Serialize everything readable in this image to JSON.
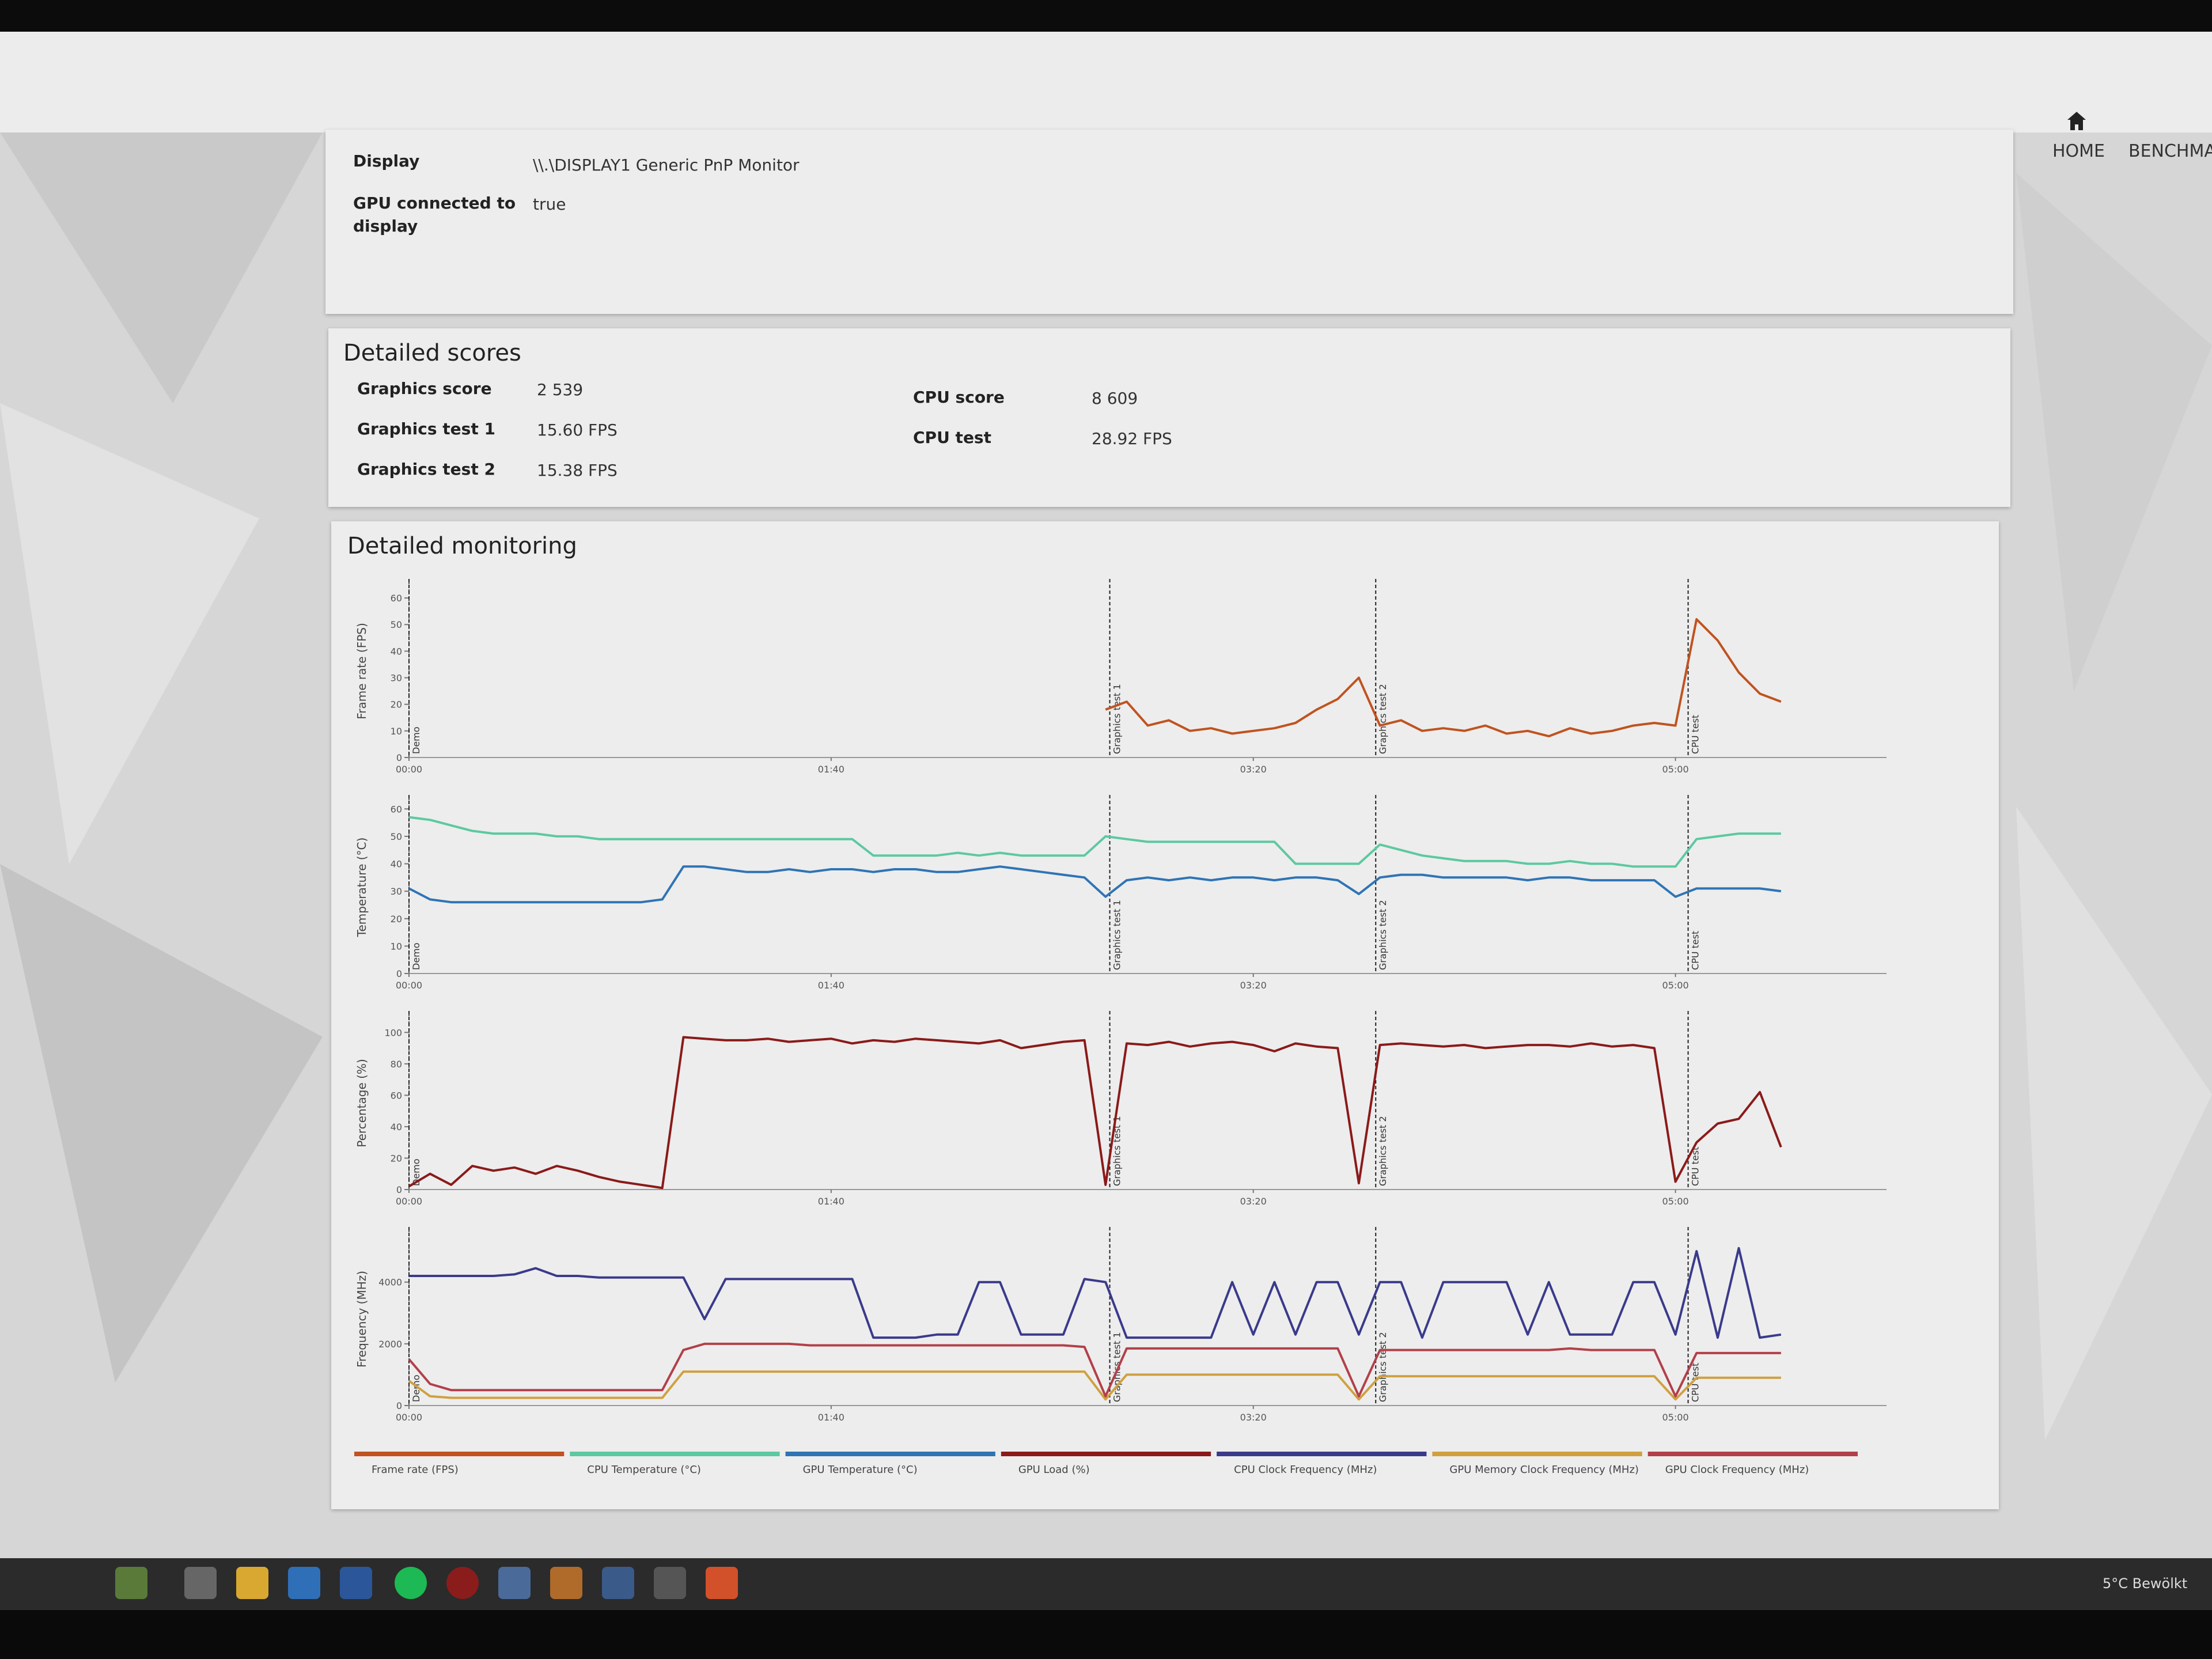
{
  "nav": [
    "HOME",
    "BENCHMARKS"
  ],
  "display_info": {
    "rows": [
      [
        "Display",
        "\\\\.\\DISPLAY1 Generic PnP Monitor"
      ],
      [
        "GPU connected to display",
        "true"
      ]
    ]
  },
  "detailed_scores": {
    "title": "Detailed scores",
    "left": [
      [
        "Graphics score",
        "2 539"
      ],
      [
        "Graphics test 1",
        "15.60 FPS"
      ],
      [
        "Graphics test 2",
        "15.38 FPS"
      ]
    ],
    "right": [
      [
        "CPU score",
        "8 609"
      ],
      [
        "CPU test",
        "28.92 FPS"
      ]
    ]
  },
  "monitoring": {
    "title": "Detailed monitoring",
    "x": [
      0,
      5,
      10,
      15,
      20,
      25,
      30,
      35,
      40,
      45,
      50,
      55,
      60,
      65,
      70,
      75,
      80,
      85,
      90,
      95,
      100,
      105,
      110,
      115,
      120,
      125,
      130,
      135,
      140,
      145,
      150,
      155,
      160,
      165,
      170,
      175,
      180,
      185,
      190,
      195,
      200,
      205,
      210,
      215,
      220,
      225,
      230,
      235,
      240,
      245,
      250,
      255,
      260,
      265,
      270,
      275,
      280,
      285,
      290,
      295,
      300,
      305,
      310,
      315,
      320,
      325,
      330,
      335,
      340,
      345
    ],
    "xlim": [
      0,
      350
    ],
    "xticks": [
      {
        "value": 0,
        "label": "00:00"
      },
      {
        "value": 100,
        "label": "01:40"
      },
      {
        "value": 200,
        "label": "03:20"
      },
      {
        "value": 300,
        "label": "05:00"
      }
    ],
    "markers": [
      {
        "label": "Demo",
        "x": 0
      },
      {
        "label": "Graphics test 1",
        "x": 166
      },
      {
        "label": "Graphics test 2",
        "x": 229
      },
      {
        "label": "CPU test",
        "x": 303
      }
    ],
    "charts": [
      {
        "type": "line",
        "ylabel": "Frame rate (FPS)",
        "ylim": [
          0,
          65
        ],
        "yticks": [
          0,
          10,
          20,
          30,
          40,
          50,
          60
        ],
        "series": [
          {
            "name": "Frame rate (FPS)",
            "color": "#c0531f",
            "values": [
              null,
              null,
              null,
              null,
              null,
              null,
              null,
              null,
              null,
              null,
              null,
              null,
              null,
              null,
              null,
              null,
              null,
              null,
              null,
              null,
              null,
              null,
              null,
              null,
              null,
              null,
              null,
              null,
              null,
              null,
              null,
              null,
              null,
              18,
              21,
              12,
              14,
              10,
              11,
              9,
              10,
              11,
              13,
              18,
              22,
              30,
              12,
              14,
              10,
              11,
              10,
              12,
              9,
              10,
              8,
              11,
              9,
              10,
              12,
              13,
              12,
              52,
              44,
              32,
              24,
              21,
              null,
              null,
              null,
              null
            ]
          }
        ]
      },
      {
        "type": "line",
        "ylabel": "Temperature (°C)",
        "ylim": [
          0,
          63
        ],
        "yticks": [
          0,
          10,
          20,
          30,
          40,
          50,
          60
        ],
        "series": [
          {
            "name": "CPU Temperature (°C)",
            "color": "#5cc9a0",
            "values": [
              57,
              56,
              54,
              52,
              51,
              51,
              51,
              50,
              50,
              49,
              49,
              49,
              49,
              49,
              49,
              49,
              49,
              49,
              49,
              49,
              49,
              49,
              43,
              43,
              43,
              43,
              44,
              43,
              44,
              43,
              43,
              43,
              43,
              50,
              49,
              48,
              48,
              48,
              48,
              48,
              48,
              48,
              40,
              40,
              40,
              40,
              47,
              45,
              43,
              42,
              41,
              41,
              41,
              40,
              40,
              41,
              40,
              40,
              39,
              39,
              39,
              49,
              50,
              51,
              51,
              51,
              null,
              null,
              null,
              null
            ]
          },
          {
            "name": "GPU Temperature (°C)",
            "color": "#2f74b5",
            "values": [
              31,
              27,
              26,
              26,
              26,
              26,
              26,
              26,
              26,
              26,
              26,
              26,
              27,
              39,
              39,
              38,
              37,
              37,
              38,
              37,
              38,
              38,
              37,
              38,
              38,
              37,
              37,
              38,
              39,
              38,
              37,
              36,
              35,
              28,
              34,
              35,
              34,
              35,
              34,
              35,
              35,
              34,
              35,
              35,
              34,
              29,
              35,
              36,
              36,
              35,
              35,
              35,
              35,
              34,
              35,
              35,
              34,
              34,
              34,
              34,
              28,
              31,
              31,
              31,
              31,
              30,
              null,
              null,
              null,
              null
            ]
          }
        ]
      },
      {
        "type": "line",
        "ylabel": "Percentage (%)",
        "ylim": [
          0,
          110
        ],
        "yticks": [
          0,
          20,
          40,
          60,
          80,
          100
        ],
        "series": [
          {
            "name": "GPU Load (%)",
            "color": "#8b1a1a",
            "values": [
              2,
              10,
              3,
              15,
              12,
              14,
              10,
              15,
              12,
              8,
              5,
              3,
              1,
              97,
              96,
              95,
              95,
              96,
              94,
              95,
              96,
              93,
              95,
              94,
              96,
              95,
              94,
              93,
              95,
              90,
              92,
              94,
              95,
              3,
              93,
              92,
              94,
              91,
              93,
              94,
              92,
              88,
              93,
              91,
              90,
              4,
              92,
              93,
              92,
              91,
              92,
              90,
              91,
              92,
              92,
              91,
              93,
              91,
              92,
              90,
              5,
              30,
              42,
              45,
              62,
              27,
              null,
              null,
              null,
              null
            ]
          }
        ]
      },
      {
        "type": "line",
        "ylabel": "Frequency (MHz)",
        "ylim": [
          0,
          5600
        ],
        "yticks": [
          0,
          2000,
          4000
        ],
        "series": [
          {
            "name": "CPU Clock Frequency (MHz)",
            "color": "#3a3a8c",
            "values": [
              4200,
              4200,
              4200,
              4200,
              4200,
              4250,
              4450,
              4200,
              4200,
              4150,
              4150,
              4150,
              4150,
              4150,
              2800,
              4100,
              4100,
              4100,
              4100,
              4100,
              4100,
              4100,
              2200,
              2200,
              2200,
              2300,
              2300,
              4000,
              4000,
              2300,
              2300,
              2300,
              4100,
              4000,
              2200,
              2200,
              2200,
              2200,
              2200,
              4000,
              2300,
              4000,
              2300,
              4000,
              4000,
              2300,
              4000,
              4000,
              2200,
              4000,
              4000,
              4000,
              4000,
              2300,
              4000,
              2300,
              2300,
              2300,
              4000,
              4000,
              2300,
              5000,
              2200,
              5100,
              2200,
              2300,
              null,
              null,
              null,
              null
            ]
          },
          {
            "name": "GPU Memory Clock Frequency (MHz)",
            "color": "#d0a040",
            "values": [
              800,
              300,
              250,
              250,
              250,
              250,
              250,
              250,
              250,
              250,
              250,
              250,
              250,
              1100,
              1100,
              1100,
              1100,
              1100,
              1100,
              1100,
              1100,
              1100,
              1100,
              1100,
              1100,
              1100,
              1100,
              1100,
              1100,
              1100,
              1100,
              1100,
              1100,
              200,
              1000,
              1000,
              1000,
              1000,
              1000,
              1000,
              1000,
              1000,
              1000,
              1000,
              1000,
              200,
              950,
              950,
              950,
              950,
              950,
              950,
              950,
              950,
              950,
              950,
              950,
              950,
              950,
              950,
              200,
              900,
              900,
              900,
              900,
              900,
              null,
              null,
              null,
              null
            ]
          },
          {
            "name": "GPU Clock Frequency (MHz)",
            "color": "#b2404a",
            "values": [
              1500,
              700,
              500,
              500,
              500,
              500,
              500,
              500,
              500,
              500,
              500,
              500,
              500,
              1800,
              2000,
              2000,
              2000,
              2000,
              2000,
              1950,
              1950,
              1950,
              1950,
              1950,
              1950,
              1950,
              1950,
              1950,
              1950,
              1950,
              1950,
              1950,
              1900,
              300,
              1850,
              1850,
              1850,
              1850,
              1850,
              1850,
              1850,
              1850,
              1850,
              1850,
              1850,
              300,
              1800,
              1800,
              1800,
              1800,
              1800,
              1800,
              1800,
              1800,
              1800,
              1850,
              1800,
              1800,
              1800,
              1800,
              300,
              1700,
              1700,
              1700,
              1700,
              1700,
              null,
              null,
              null,
              null
            ]
          }
        ]
      }
    ]
  },
  "taskbar": {
    "weather": "5°C Bewölkt"
  }
}
